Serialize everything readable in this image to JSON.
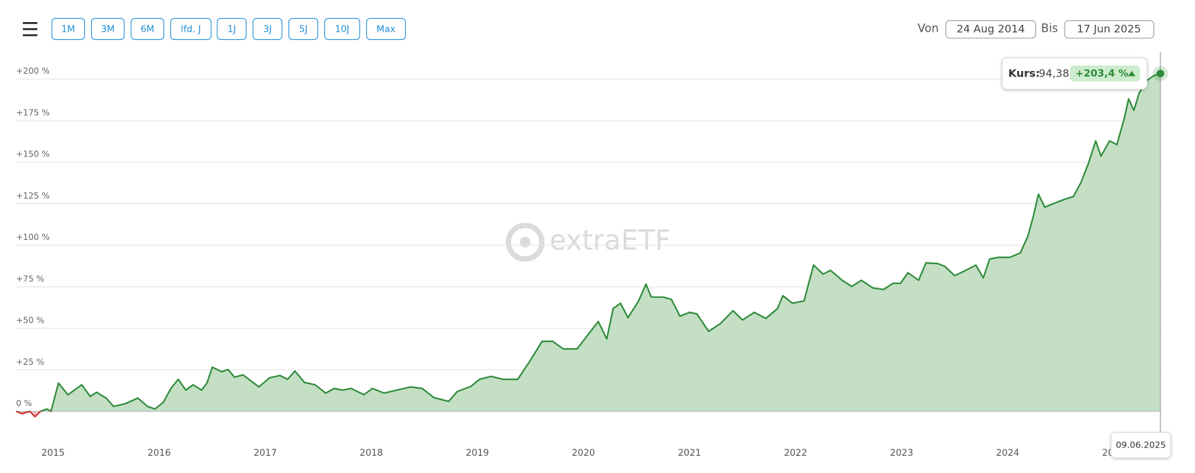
{
  "toolbar": {
    "buttons": [
      "1M",
      "3M",
      "6M",
      "lfd. J",
      "1J",
      "3J",
      "5J",
      "10J",
      "Max"
    ]
  },
  "date_range": {
    "from_label": "Von",
    "from": "24 Aug 2014",
    "to_label": "Bis",
    "to": "17 Jun 2025"
  },
  "watermark": "extraETF",
  "tooltip": {
    "label": "Kurs:",
    "price": "94,38",
    "change": "+203,4 %",
    "date": "09.06.2025"
  },
  "chart_data": {
    "type": "area",
    "xlim": [
      2014.65,
      2025.45
    ],
    "xticks": [
      2015,
      2016,
      2017,
      2018,
      2019,
      2020,
      2021,
      2022,
      2023,
      2024,
      2025
    ],
    "ylim": [
      -5,
      205
    ],
    "yticks": [
      {
        "value": 0,
        "label": "0 %"
      },
      {
        "value": 25,
        "label": "+25 %"
      },
      {
        "value": 50,
        "label": "+50 %"
      },
      {
        "value": 75,
        "label": "+75 %"
      },
      {
        "value": 100,
        "label": "+100 %"
      },
      {
        "value": 125,
        "label": "+125 %"
      },
      {
        "value": 150,
        "label": "+150 %"
      },
      {
        "value": 175,
        "label": "+175 %"
      },
      {
        "value": 200,
        "label": "+200 %"
      }
    ],
    "grid": true,
    "series": [
      {
        "color": "#2e8b3a",
        "negative_color": "#d0312d",
        "fill": "#c4dfc4",
        "negative_fill": "#f2c4c4",
        "x": [
          2014.65,
          2014.71,
          2014.78,
          2014.83,
          2014.88,
          2014.94,
          2014.98,
          2015.05,
          2015.14,
          2015.27,
          2015.35,
          2015.41,
          2015.5,
          2015.57,
          2015.68,
          2015.8,
          2015.89,
          2015.96,
          2016.04,
          2016.11,
          2016.18,
          2016.25,
          2016.32,
          2016.4,
          2016.45,
          2016.5,
          2016.59,
          2016.65,
          2016.71,
          2016.79,
          2016.94,
          2017.04,
          2017.14,
          2017.21,
          2017.28,
          2017.37,
          2017.47,
          2017.57,
          2017.65,
          2017.73,
          2017.81,
          2017.93,
          2018.01,
          2018.12,
          2018.24,
          2018.37,
          2018.48,
          2018.59,
          2018.73,
          2018.81,
          2018.94,
          2019.02,
          2019.13,
          2019.24,
          2019.38,
          2019.49,
          2019.61,
          2019.71,
          2019.81,
          2019.94,
          2020.04,
          2020.14,
          2020.22,
          2020.28,
          2020.35,
          2020.42,
          2020.52,
          2020.59,
          2020.64,
          2020.75,
          2020.83,
          2020.91,
          2021.0,
          2021.07,
          2021.18,
          2021.29,
          2021.41,
          2021.5,
          2021.61,
          2021.72,
          2021.83,
          2021.88,
          2021.97,
          2022.08,
          2022.17,
          2022.26,
          2022.33,
          2022.44,
          2022.53,
          2022.62,
          2022.73,
          2022.83,
          2022.92,
          2022.99,
          2023.06,
          2023.16,
          2023.23,
          2023.34,
          2023.41,
          2023.5,
          2023.59,
          2023.7,
          2023.77,
          2023.83,
          2023.91,
          2024.02,
          2024.12,
          2024.19,
          2024.24,
          2024.29,
          2024.35,
          2024.42,
          2024.53,
          2024.62,
          2024.69,
          2024.76,
          2024.83,
          2024.88,
          2024.96,
          2025.03,
          2025.1,
          2025.14,
          2025.19,
          2025.24,
          2025.32,
          2025.37,
          2025.42,
          2025.44
        ],
        "values": [
          0,
          -1.4,
          0,
          -3.2,
          0,
          1.4,
          0,
          17,
          10,
          16,
          9,
          11.5,
          8,
          3,
          4.6,
          8,
          3,
          1.4,
          5.5,
          13.8,
          19.3,
          12.8,
          16,
          12.8,
          17,
          26.6,
          23.9,
          25.2,
          20.6,
          22,
          14.7,
          20.2,
          21.6,
          19.3,
          24.3,
          17.4,
          16,
          11,
          13.8,
          12.8,
          13.8,
          10,
          13.8,
          11,
          12.8,
          14.7,
          13.8,
          8.3,
          6,
          11.9,
          15.1,
          19.3,
          21.1,
          19.3,
          19.3,
          29.8,
          42.2,
          42.2,
          37.6,
          37.6,
          45.9,
          54.1,
          43.6,
          61.9,
          65.1,
          56.4,
          66.5,
          76.6,
          68.8,
          68.8,
          67.4,
          57.3,
          59.6,
          58.7,
          48.2,
          52.8,
          60.6,
          55,
          59.6,
          56,
          61.9,
          69.7,
          65.1,
          66.5,
          88.1,
          82.6,
          84.9,
          78.9,
          75.2,
          78.9,
          74.3,
          73.4,
          77.1,
          77.1,
          83.5,
          78.9,
          89.4,
          89,
          87.2,
          81.7,
          84.4,
          88.1,
          80.3,
          91.7,
          92.7,
          92.7,
          95.4,
          105.5,
          117,
          130.7,
          122.9,
          124.8,
          127.5,
          129.4,
          137.6,
          149.1,
          162.8,
          153.7,
          162.8,
          160.6,
          176.6,
          188.1,
          181.2,
          191.7,
          199.5,
          201.8,
          203.2,
          203.4
        ]
      }
    ]
  }
}
